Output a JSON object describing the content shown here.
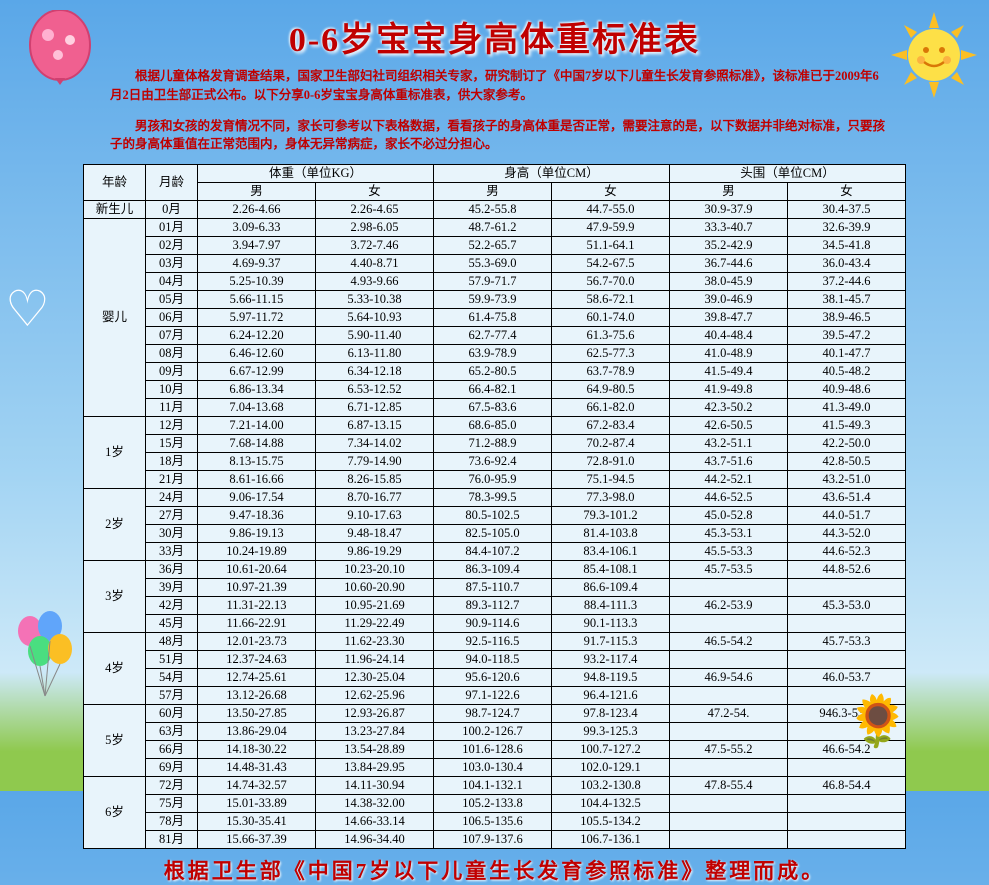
{
  "title": "0-6岁宝宝身高体重标准表",
  "intro1": "　　根据儿童体格发育调查结果，国家卫生部妇社司组织相关专家，研究制订了《中国7岁以下儿童生长发育参照标准》，该标准已于2009年6月2日由卫生部正式公布。以下分享0-6岁宝宝身高体重标准表，供大家参考。",
  "intro2": "　　男孩和女孩的发育情况不同，家长可参考以下表格数据，看看孩子的身高体重是否正常，需要注意的是，以下数据并非绝对标准，只要孩子的身高体重值在正常范围内，身体无异常病症，家长不必过分担心。",
  "footer": "根据卫生部《中国7岁以下儿童生长发育参照标准》整理而成。",
  "headers": {
    "age": "年龄",
    "month": "月龄",
    "weight": "体重（单位KG）",
    "height": "身高（单位CM）",
    "head": "头围（单位CM）",
    "male": "男",
    "female": "女"
  },
  "groups": [
    {
      "age": "新生儿",
      "rows": [
        [
          "0月",
          "2.26-4.66",
          "2.26-4.65",
          "45.2-55.8",
          "44.7-55.0",
          "30.9-37.9",
          "30.4-37.5"
        ]
      ]
    },
    {
      "age": "婴儿",
      "rows": [
        [
          "01月",
          "3.09-6.33",
          "2.98-6.05",
          "48.7-61.2",
          "47.9-59.9",
          "33.3-40.7",
          "32.6-39.9"
        ],
        [
          "02月",
          "3.94-7.97",
          "3.72-7.46",
          "52.2-65.7",
          "51.1-64.1",
          "35.2-42.9",
          "34.5-41.8"
        ],
        [
          "03月",
          "4.69-9.37",
          "4.40-8.71",
          "55.3-69.0",
          "54.2-67.5",
          "36.7-44.6",
          "36.0-43.4"
        ],
        [
          "04月",
          "5.25-10.39",
          "4.93-9.66",
          "57.9-71.7",
          "56.7-70.0",
          "38.0-45.9",
          "37.2-44.6"
        ],
        [
          "05月",
          "5.66-11.15",
          "5.33-10.38",
          "59.9-73.9",
          "58.6-72.1",
          "39.0-46.9",
          "38.1-45.7"
        ],
        [
          "06月",
          "5.97-11.72",
          "5.64-10.93",
          "61.4-75.8",
          "60.1-74.0",
          "39.8-47.7",
          "38.9-46.5"
        ],
        [
          "07月",
          "6.24-12.20",
          "5.90-11.40",
          "62.7-77.4",
          "61.3-75.6",
          "40.4-48.4",
          "39.5-47.2"
        ],
        [
          "08月",
          "6.46-12.60",
          "6.13-11.80",
          "63.9-78.9",
          "62.5-77.3",
          "41.0-48.9",
          "40.1-47.7"
        ],
        [
          "09月",
          "6.67-12.99",
          "6.34-12.18",
          "65.2-80.5",
          "63.7-78.9",
          "41.5-49.4",
          "40.5-48.2"
        ],
        [
          "10月",
          "6.86-13.34",
          "6.53-12.52",
          "66.4-82.1",
          "64.9-80.5",
          "41.9-49.8",
          "40.9-48.6"
        ],
        [
          "11月",
          "7.04-13.68",
          "6.71-12.85",
          "67.5-83.6",
          "66.1-82.0",
          "42.3-50.2",
          "41.3-49.0"
        ]
      ]
    },
    {
      "age": "1岁",
      "rows": [
        [
          "12月",
          "7.21-14.00",
          "6.87-13.15",
          "68.6-85.0",
          "67.2-83.4",
          "42.6-50.5",
          "41.5-49.3"
        ],
        [
          "15月",
          "7.68-14.88",
          "7.34-14.02",
          "71.2-88.9",
          "70.2-87.4",
          "43.2-51.1",
          "42.2-50.0"
        ],
        [
          "18月",
          "8.13-15.75",
          "7.79-14.90",
          "73.6-92.4",
          "72.8-91.0",
          "43.7-51.6",
          "42.8-50.5"
        ],
        [
          "21月",
          "8.61-16.66",
          "8.26-15.85",
          "76.0-95.9",
          "75.1-94.5",
          "44.2-52.1",
          "43.2-51.0"
        ]
      ]
    },
    {
      "age": "2岁",
      "rows": [
        [
          "24月",
          "9.06-17.54",
          "8.70-16.77",
          "78.3-99.5",
          "77.3-98.0",
          "44.6-52.5",
          "43.6-51.4"
        ],
        [
          "27月",
          "9.47-18.36",
          "9.10-17.63",
          "80.5-102.5",
          "79.3-101.2",
          "45.0-52.8",
          "44.0-51.7"
        ],
        [
          "30月",
          "9.86-19.13",
          "9.48-18.47",
          "82.5-105.0",
          "81.4-103.8",
          "45.3-53.1",
          "44.3-52.0"
        ],
        [
          "33月",
          "10.24-19.89",
          "9.86-19.29",
          "84.4-107.2",
          "83.4-106.1",
          "45.5-53.3",
          "44.6-52.3"
        ]
      ]
    },
    {
      "age": "3岁",
      "rows": [
        [
          "36月",
          "10.61-20.64",
          "10.23-20.10",
          "86.3-109.4",
          "85.4-108.1",
          "45.7-53.5",
          "44.8-52.6"
        ],
        [
          "39月",
          "10.97-21.39",
          "10.60-20.90",
          "87.5-110.7",
          "86.6-109.4",
          "",
          ""
        ],
        [
          "42月",
          "11.31-22.13",
          "10.95-21.69",
          "89.3-112.7",
          "88.4-111.3",
          "46.2-53.9",
          "45.3-53.0"
        ],
        [
          "45月",
          "11.66-22.91",
          "11.29-22.49",
          "90.9-114.6",
          "90.1-113.3",
          "",
          ""
        ]
      ]
    },
    {
      "age": "4岁",
      "rows": [
        [
          "48月",
          "12.01-23.73",
          "11.62-23.30",
          "92.5-116.5",
          "91.7-115.3",
          "46.5-54.2",
          "45.7-53.3"
        ],
        [
          "51月",
          "12.37-24.63",
          "11.96-24.14",
          "94.0-118.5",
          "93.2-117.4",
          "",
          ""
        ],
        [
          "54月",
          "12.74-25.61",
          "12.30-25.04",
          "95.6-120.6",
          "94.8-119.5",
          "46.9-54.6",
          "46.0-53.7"
        ],
        [
          "57月",
          "13.12-26.68",
          "12.62-25.96",
          "97.1-122.6",
          "96.4-121.6",
          "",
          ""
        ]
      ]
    },
    {
      "age": "5岁",
      "rows": [
        [
          "60月",
          "13.50-27.85",
          "12.93-26.87",
          "98.7-124.7",
          "97.8-123.4",
          "47.2-54.",
          "946.3-53.9"
        ],
        [
          "63月",
          "13.86-29.04",
          "13.23-27.84",
          "100.2-126.7",
          "99.3-125.3",
          "",
          ""
        ],
        [
          "66月",
          "14.18-30.22",
          "13.54-28.89",
          "101.6-128.6",
          "100.7-127.2",
          "47.5-55.2",
          "46.6-54.2"
        ],
        [
          "69月",
          "14.48-31.43",
          "13.84-29.95",
          "103.0-130.4",
          "102.0-129.1",
          "",
          ""
        ]
      ]
    },
    {
      "age": "6岁",
      "rows": [
        [
          "72月",
          "14.74-32.57",
          "14.11-30.94",
          "104.1-132.1",
          "103.2-130.8",
          "47.8-55.4",
          "46.8-54.4"
        ],
        [
          "75月",
          "15.01-33.89",
          "14.38-32.00",
          "105.2-133.8",
          "104.4-132.5",
          "",
          ""
        ],
        [
          "78月",
          "15.30-35.41",
          "14.66-33.14",
          "106.5-135.6",
          "105.5-134.2",
          "",
          ""
        ],
        [
          "81月",
          "15.66-37.39",
          "14.96-34.40",
          "107.9-137.6",
          "106.7-136.1",
          "",
          ""
        ]
      ]
    }
  ]
}
